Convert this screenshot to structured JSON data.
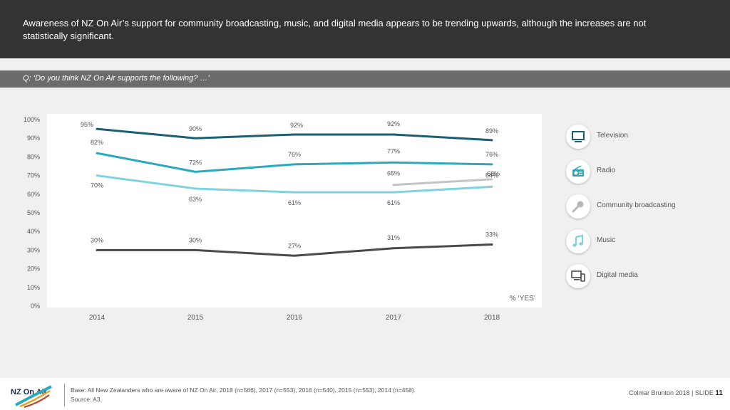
{
  "header": {
    "title": "Awareness of NZ On Air’s support for community broadcasting, music, and digital media appears to be trending upwards, although the increases are not statistically significant."
  },
  "question": "Q: ‘Do you think NZ On Air supports the following? …’",
  "chart_data": {
    "type": "line",
    "categories": [
      "2014",
      "2015",
      "2016",
      "2017",
      "2018"
    ],
    "ylim": [
      0,
      100
    ],
    "yticks": [
      "0%",
      "10%",
      "20%",
      "30%",
      "40%",
      "50%",
      "60%",
      "70%",
      "80%",
      "90%",
      "100%"
    ],
    "ylabel": "% ‘YES’",
    "series": [
      {
        "name": "Television",
        "color": "#1b5f73",
        "values": [
          95,
          90,
          92,
          92,
          89
        ],
        "labels": [
          "95%",
          "90%",
          "92%",
          "92%",
          "89%"
        ]
      },
      {
        "name": "Radio",
        "color": "#2aa9bd",
        "values": [
          82,
          72,
          76,
          77,
          76
        ],
        "labels": [
          "82%",
          "72%",
          "76%",
          "77%",
          "76%"
        ]
      },
      {
        "name": "Community broadcasting",
        "color": "#7fd3df",
        "values": [
          70,
          63,
          61,
          61,
          64
        ],
        "labels": [
          "70%",
          "63%",
          "61%",
          "61%",
          "64%"
        ]
      },
      {
        "name": "Music",
        "color": "#c4c4c4",
        "values": [
          null,
          null,
          null,
          65,
          68
        ],
        "labels": [
          "",
          "",
          "",
          "65%",
          "68%"
        ]
      },
      {
        "name": "Digital media",
        "color": "#4a4a4a",
        "values": [
          30,
          30,
          27,
          31,
          33
        ],
        "labels": [
          "30%",
          "30%",
          "27%",
          "31%",
          "33%"
        ]
      }
    ]
  },
  "legend": [
    {
      "label": "Television",
      "icon": "tv-icon"
    },
    {
      "label": "Radio",
      "icon": "radio-icon"
    },
    {
      "label": "Community broadcasting",
      "icon": "microphone-icon"
    },
    {
      "label": "Music",
      "icon": "music-note-icon"
    },
    {
      "label": "Digital media",
      "icon": "devices-icon"
    }
  ],
  "footer": {
    "base": "Base: All New Zealanders who are aware of NZ On Air, 2018 (n=566), 2017 (n=553), 2016 (n=540), 2015 (n=553), 2014 (n=458).",
    "source": "Source: A3.",
    "credit": "Colmar Brunton 2018 | SLIDE",
    "slide_number": "11",
    "logo_text": "NZ On Air"
  }
}
